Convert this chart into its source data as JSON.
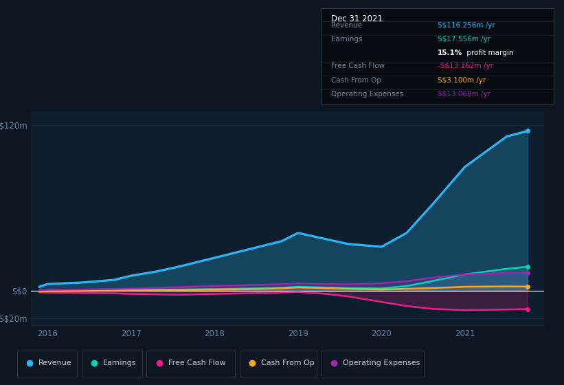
{
  "background_color": "#0e1621",
  "plot_bg_color": "#0f1e2d",
  "years": [
    2015.9,
    2016,
    2016.4,
    2016.8,
    2017,
    2017.3,
    2017.6,
    2018,
    2018.4,
    2018.8,
    2019,
    2019.3,
    2019.6,
    2020,
    2020.3,
    2020.6,
    2021,
    2021.5,
    2021.75
  ],
  "revenue": [
    3,
    5,
    6,
    8,
    11,
    14,
    18,
    24,
    30,
    36,
    42,
    38,
    34,
    32,
    42,
    62,
    90,
    112,
    116
  ],
  "earnings": [
    0,
    0.3,
    0.4,
    0.5,
    0.6,
    0.8,
    1.0,
    1.3,
    1.7,
    2.2,
    3.0,
    2.5,
    2.0,
    1.8,
    3.5,
    7.0,
    12,
    16,
    17.5
  ],
  "free_cash_flow": [
    -1,
    -1.2,
    -1.4,
    -1.8,
    -2.2,
    -2.5,
    -2.8,
    -2.2,
    -1.8,
    -1.2,
    -0.8,
    -2.0,
    -4.0,
    -8.0,
    -11,
    -13,
    -14,
    -13.5,
    -13.2
  ],
  "cash_from_op": [
    -0.5,
    -0.3,
    0.0,
    0.2,
    0.3,
    0.5,
    0.6,
    0.8,
    1.2,
    1.8,
    2.5,
    2.0,
    1.5,
    1.0,
    1.5,
    2.0,
    3.0,
    3.2,
    3.1
  ],
  "operating_expenses": [
    0.5,
    0.8,
    1.0,
    1.3,
    1.7,
    2.2,
    2.8,
    3.5,
    4.2,
    4.8,
    5.5,
    5.0,
    4.8,
    5.5,
    7.0,
    9.5,
    12,
    13,
    13.1
  ],
  "revenue_color": "#29b6f6",
  "earnings_color": "#00d4b8",
  "free_cash_flow_color": "#e91e8c",
  "cash_from_op_color": "#ffa726",
  "operating_expenses_color": "#9c27b0",
  "ylim": [
    -25,
    130
  ],
  "yticks": [
    -20,
    0,
    120
  ],
  "ytick_labels": [
    "-S$20m",
    "S$0",
    "S$120m"
  ],
  "grid_color": "#1e3045",
  "axis_label_color": "#6688aa",
  "x_ticks": [
    2016,
    2017,
    2018,
    2019,
    2020,
    2021
  ],
  "info_box": {
    "title": "Dec 31 2021",
    "rows": [
      {
        "label": "Revenue",
        "value": "S$116.256m /yr",
        "value_color": "#29b6f6"
      },
      {
        "label": "Earnings",
        "value": "S$17.556m /yr",
        "value_color": "#00d4b8"
      },
      {
        "label": "",
        "value_plain": " profit margin",
        "value_bold": "15.1%",
        "value_color": "#ffffff"
      },
      {
        "label": "Free Cash Flow",
        "value": "-S$13.162m /yr",
        "value_color": "#e91e8c"
      },
      {
        "label": "Cash From Op",
        "value": "S$3.100m /yr",
        "value_color": "#ffa726"
      },
      {
        "label": "Operating Expenses",
        "value": "S$13.068m /yr",
        "value_color": "#9c27b0"
      }
    ],
    "bg_color": "#080c10",
    "border_color": "#2a3a4a",
    "title_color": "#ffffff",
    "label_color": "#778899"
  },
  "legend_items": [
    {
      "label": "Revenue",
      "color": "#29b6f6"
    },
    {
      "label": "Earnings",
      "color": "#00d4b8"
    },
    {
      "label": "Free Cash Flow",
      "color": "#e91e8c"
    },
    {
      "label": "Cash From Op",
      "color": "#ffa726"
    },
    {
      "label": "Operating Expenses",
      "color": "#9c27b0"
    }
  ]
}
